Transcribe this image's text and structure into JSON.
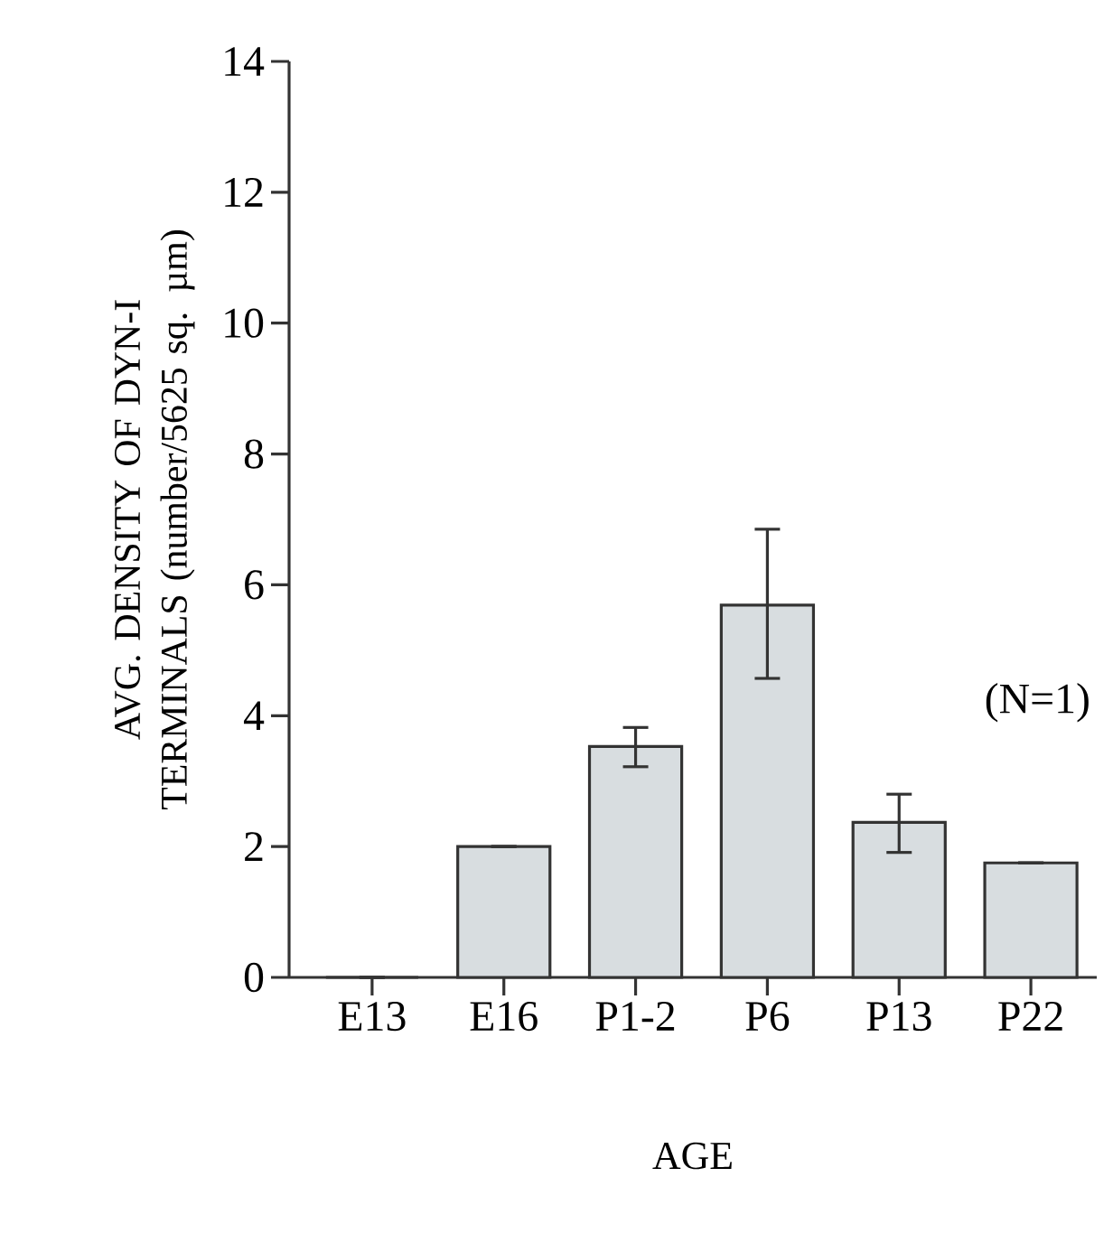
{
  "chart_data": {
    "type": "bar",
    "categories": [
      "E13",
      "E16",
      "P1-2",
      "P6",
      "P13",
      "P22"
    ],
    "values": [
      0,
      2.0,
      3.53,
      5.69,
      2.37,
      1.75
    ],
    "errors": [
      null,
      null,
      [
        3.22,
        3.82
      ],
      [
        4.57,
        6.85
      ],
      [
        1.91,
        2.8
      ],
      null
    ],
    "color": "#d8dde0",
    "xlabel": "AGE",
    "ylabel": "AVG. DENSITY OF DYN-I TERMINALS (number/5625 sq. µm)",
    "ylim": [
      0,
      14
    ],
    "yticks": [
      0,
      2,
      4,
      6,
      8,
      10,
      12,
      14
    ],
    "annotations": [
      "(N=1)"
    ],
    "grid": false
  }
}
